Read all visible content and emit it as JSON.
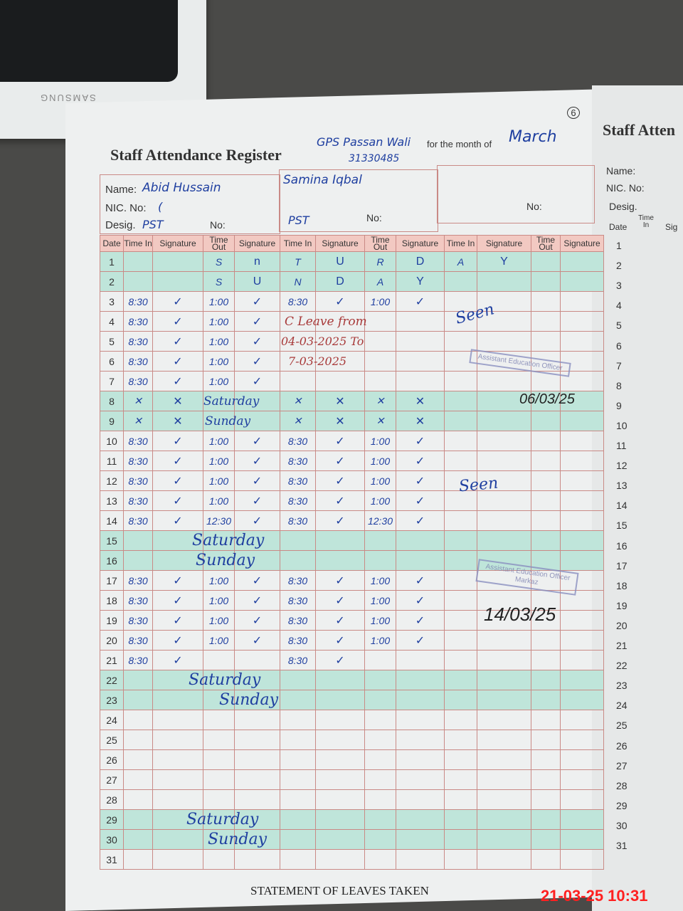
{
  "phone": {
    "brand": "SAMSUNG"
  },
  "register": {
    "title": "Staff Attendance Register",
    "school": "GPS Passan Wali",
    "code": "31330485",
    "month_label": "for the month of",
    "month": "March",
    "page_number": "6"
  },
  "staff": [
    {
      "name_label": "Name:",
      "name": "Abid Hussain",
      "nic_label": "NIC. No:",
      "nic": "(",
      "desig_label": "Desig.",
      "desig": "PST",
      "no_label": "No:"
    },
    {
      "name": "Samina Iqbal",
      "desig": "PST",
      "no_label": "No:"
    },
    {
      "no_label": "No:"
    }
  ],
  "headers": [
    "Date",
    "Time In",
    "Signature",
    "Time Out",
    "Signature",
    "Time In",
    "Signature",
    "Time Out",
    "Signature",
    "Time In",
    "Signature",
    "Time Out",
    "Signature"
  ],
  "weekend_rows": [
    1,
    2,
    8,
    9,
    15,
    16,
    22,
    23,
    29,
    30
  ],
  "rows": [
    {
      "d": "1",
      "cells": [
        "",
        "",
        "S",
        "n",
        "T",
        "U",
        "R",
        "D",
        "A",
        "Y"
      ]
    },
    {
      "d": "2",
      "cells": [
        "",
        "",
        "S",
        "U",
        "N",
        "D",
        "A",
        "Y"
      ]
    },
    {
      "d": "3",
      "cells": [
        "8:30",
        "✓",
        "1:00",
        "✓",
        "8:30",
        "✓",
        "1:00",
        "✓"
      ]
    },
    {
      "d": "4",
      "cells": [
        "8:30",
        "✓",
        "1:00",
        "✓"
      ]
    },
    {
      "d": "5",
      "cells": [
        "8:30",
        "✓",
        "1:00",
        "✓"
      ]
    },
    {
      "d": "6",
      "cells": [
        "8:30",
        "✓",
        "1:00",
        "✓"
      ]
    },
    {
      "d": "7",
      "cells": [
        "8:30",
        "✓",
        "1:00",
        "✓"
      ]
    },
    {
      "d": "8",
      "cells": [
        "✕",
        "✕",
        "",
        "",
        "✕",
        "✕",
        "✕",
        "✕"
      ]
    },
    {
      "d": "9",
      "cells": [
        "✕",
        "✕",
        "",
        "",
        "✕",
        "✕",
        "✕",
        "✕"
      ]
    },
    {
      "d": "10",
      "cells": [
        "8:30",
        "✓",
        "1:00",
        "✓",
        "8:30",
        "✓",
        "1:00",
        "✓"
      ]
    },
    {
      "d": "11",
      "cells": [
        "8:30",
        "✓",
        "1:00",
        "✓",
        "8:30",
        "✓",
        "1:00",
        "✓"
      ]
    },
    {
      "d": "12",
      "cells": [
        "8:30",
        "✓",
        "1:00",
        "✓",
        "8:30",
        "✓",
        "1:00",
        "✓"
      ]
    },
    {
      "d": "13",
      "cells": [
        "8:30",
        "✓",
        "1:00",
        "✓",
        "8:30",
        "✓",
        "1:00",
        "✓"
      ]
    },
    {
      "d": "14",
      "cells": [
        "8:30",
        "✓",
        "12:30",
        "✓",
        "8:30",
        "✓",
        "12:30",
        "✓"
      ]
    },
    {
      "d": "15",
      "cells": []
    },
    {
      "d": "16",
      "cells": []
    },
    {
      "d": "17",
      "cells": [
        "8:30",
        "✓",
        "1:00",
        "✓",
        "8:30",
        "✓",
        "1:00",
        "✓"
      ]
    },
    {
      "d": "18",
      "cells": [
        "8:30",
        "✓",
        "1:00",
        "✓",
        "8:30",
        "✓",
        "1:00",
        "✓"
      ]
    },
    {
      "d": "19",
      "cells": [
        "8:30",
        "✓",
        "1:00",
        "✓",
        "8:30",
        "✓",
        "1:00",
        "✓"
      ]
    },
    {
      "d": "20",
      "cells": [
        "8:30",
        "✓",
        "1:00",
        "✓",
        "8:30",
        "✓",
        "1:00",
        "✓"
      ]
    },
    {
      "d": "21",
      "cells": [
        "8:30",
        "✓",
        "",
        "",
        "8:30",
        "✓"
      ]
    },
    {
      "d": "22",
      "cells": []
    },
    {
      "d": "23",
      "cells": []
    },
    {
      "d": "24",
      "cells": []
    },
    {
      "d": "25",
      "cells": []
    },
    {
      "d": "26",
      "cells": []
    },
    {
      "d": "27",
      "cells": []
    },
    {
      "d": "28",
      "cells": []
    },
    {
      "d": "29",
      "cells": []
    },
    {
      "d": "30",
      "cells": []
    },
    {
      "d": "31",
      "cells": []
    }
  ],
  "notes": {
    "sat8": "Saturday",
    "sun9": "Sunday",
    "sat15": "Saturday",
    "sun16": "Sunday",
    "sat22": "Saturday",
    "sun23": "Sunday",
    "sat29": "Saturday",
    "sun30": "Sunday",
    "leave1": "C Leave from",
    "leave2": "04-03-2025 To",
    "leave3": "7-03-2025"
  },
  "remarks": {
    "seen1": "Seen",
    "stamp1": "Assistant Education Officer",
    "date1": "06/03/25",
    "seen2": "Seen",
    "stamp2": "Assistant Education Officer Markaz",
    "date2": "14/03/25"
  },
  "footer": {
    "statement": "STATEMENT OF LEAVES TAKEN",
    "timestamp": "21-03-25  10:31"
  },
  "next_page": {
    "title": "Staff Atten",
    "name_label": "Name:",
    "nic_label": "NIC. No:",
    "desig_label": "Desig.",
    "date_header": "Date",
    "time_in": "Time In",
    "sig": "Sig"
  },
  "colors": {
    "ink": "#1f3fa0",
    "rule": "#c98a86",
    "header": "#f2c9c2",
    "weekend": "#bfe5da",
    "timestamp": "#ff2020"
  }
}
